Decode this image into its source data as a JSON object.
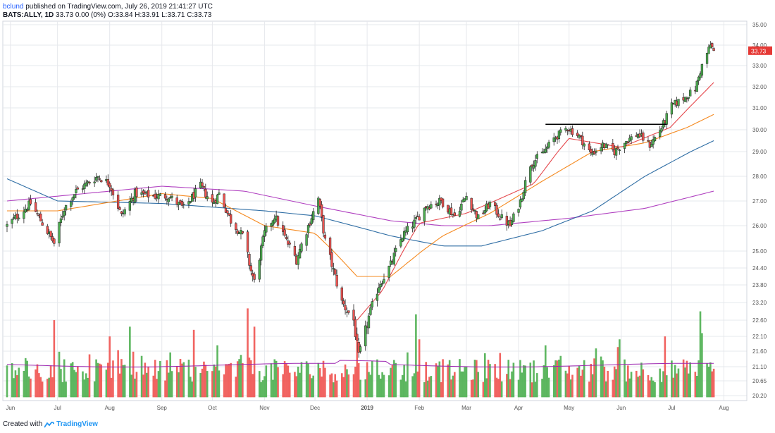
{
  "header": {
    "author": "bclund",
    "published_text": "published on TradingView.com, July 26, 2019 21:41:27 UTC",
    "symbol": "BATS:ALLY, 1D",
    "ohlc": "33.73 0.00 (0%) O:33.84 H:33.91 L:33.71 C:33.73"
  },
  "footer": {
    "created_with": "Created with",
    "brand": "TradingView"
  },
  "colors": {
    "up": "#4caf50",
    "down": "#ef5350",
    "ma10": "#e5484d",
    "ma20": "#f5891f",
    "ma50": "#2e6da4",
    "ma200": "#b040c0",
    "vol_ma": "#9c27b0",
    "price_tag": "#e53935",
    "grid": "#e6e8ec"
  },
  "chart_data": {
    "type": "candlestick",
    "price_axis_ticks": [
      "35.00",
      "34.00",
      "33.00",
      "32.00",
      "31.00",
      "30.00",
      "29.00",
      "28.00",
      "27.00",
      "26.00",
      "25.00",
      "24.40",
      "23.80",
      "23.20",
      "22.60",
      "22.10",
      "21.60",
      "21.10",
      "20.65",
      "20.20"
    ],
    "time_axis_ticks": [
      "Jun",
      "Jul",
      "Aug",
      "Sep",
      "Oct",
      "Nov",
      "Dec",
      "2019",
      "Feb",
      "Mar",
      "Apr",
      "May",
      "Jun",
      "Jul",
      "Aug"
    ],
    "last_price_label": "33.73",
    "resistance_level": 30.25,
    "close_anchors": [
      [
        "2018-06-01",
        26.0
      ],
      [
        "2018-06-15",
        26.9
      ],
      [
        "2018-06-29",
        25.3
      ],
      [
        "2018-07-05",
        26.7
      ],
      [
        "2018-07-12",
        27.4
      ],
      [
        "2018-07-25",
        28.0
      ],
      [
        "2018-08-01",
        27.7
      ],
      [
        "2018-08-08",
        26.4
      ],
      [
        "2018-08-16",
        27.3
      ],
      [
        "2018-08-27",
        27.2
      ],
      [
        "2018-09-05",
        27.2
      ],
      [
        "2018-09-14",
        26.7
      ],
      [
        "2018-09-24",
        27.6
      ],
      [
        "2018-10-01",
        26.9
      ],
      [
        "2018-10-05",
        27.3
      ],
      [
        "2018-10-12",
        26.2
      ],
      [
        "2018-10-19",
        25.6
      ],
      [
        "2018-10-24",
        24.3
      ],
      [
        "2018-10-26",
        23.9
      ],
      [
        "2018-11-01",
        25.7
      ],
      [
        "2018-11-07",
        26.4
      ],
      [
        "2018-11-14",
        25.4
      ],
      [
        "2018-11-20",
        24.7
      ],
      [
        "2018-11-26",
        25.8
      ],
      [
        "2018-12-03",
        27.1
      ],
      [
        "2018-12-07",
        25.4
      ],
      [
        "2018-12-12",
        24.3
      ],
      [
        "2018-12-17",
        23.2
      ],
      [
        "2018-12-24",
        22.6
      ],
      [
        "2018-12-27",
        21.4
      ],
      [
        "2019-01-02",
        22.7
      ],
      [
        "2019-01-08",
        23.8
      ],
      [
        "2019-01-15",
        24.5
      ],
      [
        "2019-01-22",
        25.6
      ],
      [
        "2019-01-30",
        26.2
      ],
      [
        "2019-02-05",
        26.8
      ],
      [
        "2019-02-14",
        27.0
      ],
      [
        "2019-02-22",
        26.4
      ],
      [
        "2019-03-01",
        27.2
      ],
      [
        "2019-03-08",
        26.3
      ],
      [
        "2019-03-15",
        26.9
      ],
      [
        "2019-03-22",
        26.3
      ],
      [
        "2019-03-27",
        26.0
      ],
      [
        "2019-04-02",
        27.0
      ],
      [
        "2019-04-08",
        28.5
      ],
      [
        "2019-04-15",
        28.9
      ],
      [
        "2019-04-22",
        29.6
      ],
      [
        "2019-04-30",
        30.1
      ],
      [
        "2019-05-07",
        29.7
      ],
      [
        "2019-05-14",
        28.9
      ],
      [
        "2019-05-21",
        29.3
      ],
      [
        "2019-05-28",
        29.0
      ],
      [
        "2019-06-04",
        29.5
      ],
      [
        "2019-06-11",
        29.8
      ],
      [
        "2019-06-18",
        29.3
      ],
      [
        "2019-06-25",
        30.1
      ],
      [
        "2019-07-01",
        31.1
      ],
      [
        "2019-07-09",
        31.5
      ],
      [
        "2019-07-15",
        31.9
      ],
      [
        "2019-07-19",
        33.0
      ],
      [
        "2019-07-24",
        34.0
      ],
      [
        "2019-07-26",
        33.73
      ]
    ],
    "ma10_anchors": [
      [
        "2018-12-26",
        22.6
      ],
      [
        "2019-01-10",
        23.6
      ],
      [
        "2019-02-01",
        26.1
      ],
      [
        "2019-03-01",
        26.5
      ],
      [
        "2019-04-10",
        27.7
      ],
      [
        "2019-05-01",
        29.6
      ],
      [
        "2019-06-01",
        29.2
      ],
      [
        "2019-06-30",
        30.1
      ],
      [
        "2019-07-26",
        32.2
      ]
    ],
    "ma20_anchors": [
      [
        "2018-06-01",
        26.6
      ],
      [
        "2018-07-01",
        26.6
      ],
      [
        "2018-09-01",
        27.3
      ],
      [
        "2018-10-01",
        27.1
      ],
      [
        "2018-11-01",
        26.0
      ],
      [
        "2018-12-01",
        25.7
      ],
      [
        "2018-12-26",
        24.1
      ],
      [
        "2019-01-15",
        24.1
      ],
      [
        "2019-02-15",
        25.6
      ],
      [
        "2019-03-15",
        26.5
      ],
      [
        "2019-04-15",
        27.8
      ],
      [
        "2019-05-15",
        29.0
      ],
      [
        "2019-06-15",
        29.4
      ],
      [
        "2019-07-10",
        30.1
      ],
      [
        "2019-07-26",
        30.7
      ]
    ],
    "ma50_anchors": [
      [
        "2018-06-01",
        27.9
      ],
      [
        "2018-07-01",
        27.0
      ],
      [
        "2018-09-01",
        26.9
      ],
      [
        "2018-11-01",
        26.6
      ],
      [
        "2018-12-01",
        26.4
      ],
      [
        "2019-01-15",
        25.6
      ],
      [
        "2019-02-15",
        25.2
      ],
      [
        "2019-03-10",
        25.2
      ],
      [
        "2019-04-15",
        25.8
      ],
      [
        "2019-05-15",
        26.6
      ],
      [
        "2019-06-15",
        28.0
      ],
      [
        "2019-07-26",
        29.5
      ]
    ],
    "ma200_anchors": [
      [
        "2018-06-01",
        27.0
      ],
      [
        "2018-09-01",
        27.6
      ],
      [
        "2018-10-20",
        27.4
      ],
      [
        "2018-12-01",
        26.8
      ],
      [
        "2019-01-15",
        26.2
      ],
      [
        "2019-02-15",
        26.0
      ],
      [
        "2019-03-15",
        26.0
      ],
      [
        "2019-05-01",
        26.3
      ],
      [
        "2019-06-15",
        26.7
      ],
      [
        "2019-07-26",
        27.4
      ]
    ],
    "volume_spikes": [
      [
        "2018-06-29",
        22.6
      ],
      [
        "2018-08-01",
        22.1
      ],
      [
        "2018-08-13",
        22.4
      ],
      [
        "2018-09-20",
        22.3
      ],
      [
        "2018-10-04",
        21.8
      ],
      [
        "2018-10-22",
        23.0
      ],
      [
        "2018-10-26",
        22.4
      ],
      [
        "2018-12-26",
        22.1
      ],
      [
        "2019-01-30",
        22.8
      ],
      [
        "2019-02-01",
        22.0
      ],
      [
        "2019-04-17",
        21.8
      ],
      [
        "2019-05-31",
        22.0
      ],
      [
        "2019-06-27",
        22.1
      ],
      [
        "2019-07-18",
        22.9
      ],
      [
        "2019-07-19",
        22.2
      ]
    ]
  }
}
